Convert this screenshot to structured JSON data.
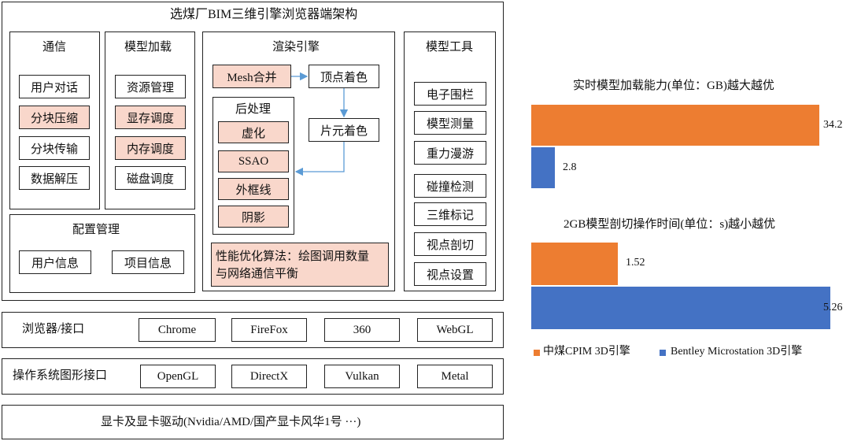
{
  "arch": {
    "title": "选煤厂BIM三维引擎浏览器端架构",
    "comm": {
      "title": "通信",
      "items": [
        "用户对话",
        "分块压缩",
        "分块传输",
        "数据解压"
      ]
    },
    "model_load": {
      "title": "模型加载",
      "items": [
        "资源管理",
        "显存调度",
        "内存调度",
        "磁盘调度"
      ]
    },
    "render": {
      "title": "渲染引擎",
      "mesh_merge": "Mesh合并",
      "vertex_shading": "顶点着色",
      "fragment_shading": "片元着色",
      "post_title": "后处理",
      "post_items": [
        "虚化",
        "SSAO",
        "外框线",
        "阴影"
      ],
      "perf_line1": "性能优化算法：绘图调用数量",
      "perf_line2": "与网络通信平衡"
    },
    "tools": {
      "title": "模型工具",
      "items": [
        "电子围栏",
        "模型测量",
        "重力漫游",
        "碰撞检测",
        "三维标记",
        "视点剖切",
        "视点设置"
      ]
    },
    "config": {
      "title": "配置管理",
      "items": [
        "用户信息",
        "项目信息"
      ]
    },
    "browser": {
      "label": "浏览器/接口",
      "items": [
        "Chrome",
        "FireFox",
        "360",
        "WebGL"
      ]
    },
    "os": {
      "label": "操作系统图形接口",
      "items": [
        "OpenGL",
        "DirectX",
        "Vulkan",
        "Metal"
      ]
    },
    "gpu": {
      "label": "显卡及显卡驱动(Nvidia/AMD/国产显卡风华1号 ···)"
    }
  },
  "chart_data": [
    {
      "type": "bar",
      "orientation": "horizontal",
      "title": "实时模型加载能力(单位：GB)越大越优",
      "series": [
        {
          "name": "中煤CPIM 3D引擎",
          "values": [
            34.2
          ]
        },
        {
          "name": "Bentley Microstation 3D引擎",
          "values": [
            2.8
          ]
        }
      ],
      "data_labels": [
        "34.2",
        "2.8"
      ],
      "xlim": [
        0,
        35.5
      ]
    },
    {
      "type": "bar",
      "orientation": "horizontal",
      "title": "2GB模型剖切操作时间(单位：s)越小越优",
      "series": [
        {
          "name": "中煤CPIM 3D引擎",
          "values": [
            1.52
          ]
        },
        {
          "name": "Bentley Microstation 3D引擎",
          "values": [
            5.26
          ]
        }
      ],
      "data_labels": [
        "1.52",
        "5.26"
      ],
      "xlim": [
        0,
        5.26
      ]
    }
  ],
  "legend": {
    "items": [
      {
        "label": "中煤CPIM 3D引擎",
        "color": "#ed7d31"
      },
      {
        "label": "Bentley Microstation 3D引擎",
        "color": "#4472c4"
      }
    ]
  },
  "colors": {
    "highlight": "#f9d7cb",
    "orange": "#ed7d31",
    "blue": "#4472c4",
    "arrow": "#5b9bd5"
  }
}
